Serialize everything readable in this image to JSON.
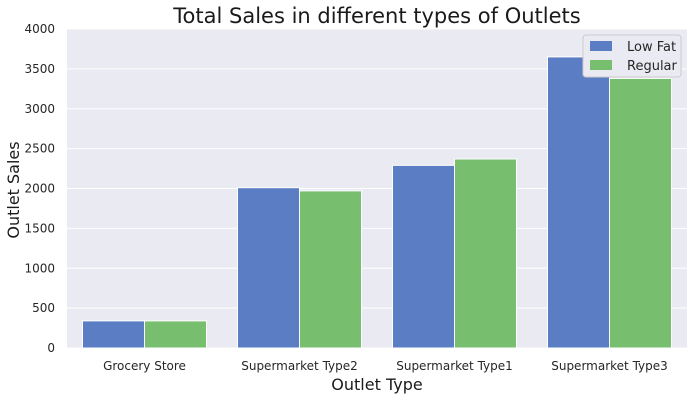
{
  "chart_data": {
    "type": "bar",
    "title": "Total Sales in different types of Outlets",
    "xlabel": "Outlet Type",
    "ylabel": "Outlet Sales",
    "categories": [
      "Grocery Store",
      "Supermarket Type2",
      "Supermarket Type1",
      "Supermarket Type3"
    ],
    "series": [
      {
        "name": "Low Fat",
        "color": "#5a7dc4",
        "values": [
          340,
          2010,
          2290,
          3650
        ]
      },
      {
        "name": "Regular",
        "color": "#77bf6f",
        "values": [
          340,
          1970,
          2370,
          3380
        ]
      }
    ],
    "ylim": [
      0,
      4000
    ],
    "yticks": [
      0,
      500,
      1000,
      1500,
      2000,
      2500,
      3000,
      3500,
      4000
    ],
    "grid": true,
    "legend_position": "top-right",
    "plot_background": "#eaeaf2"
  }
}
